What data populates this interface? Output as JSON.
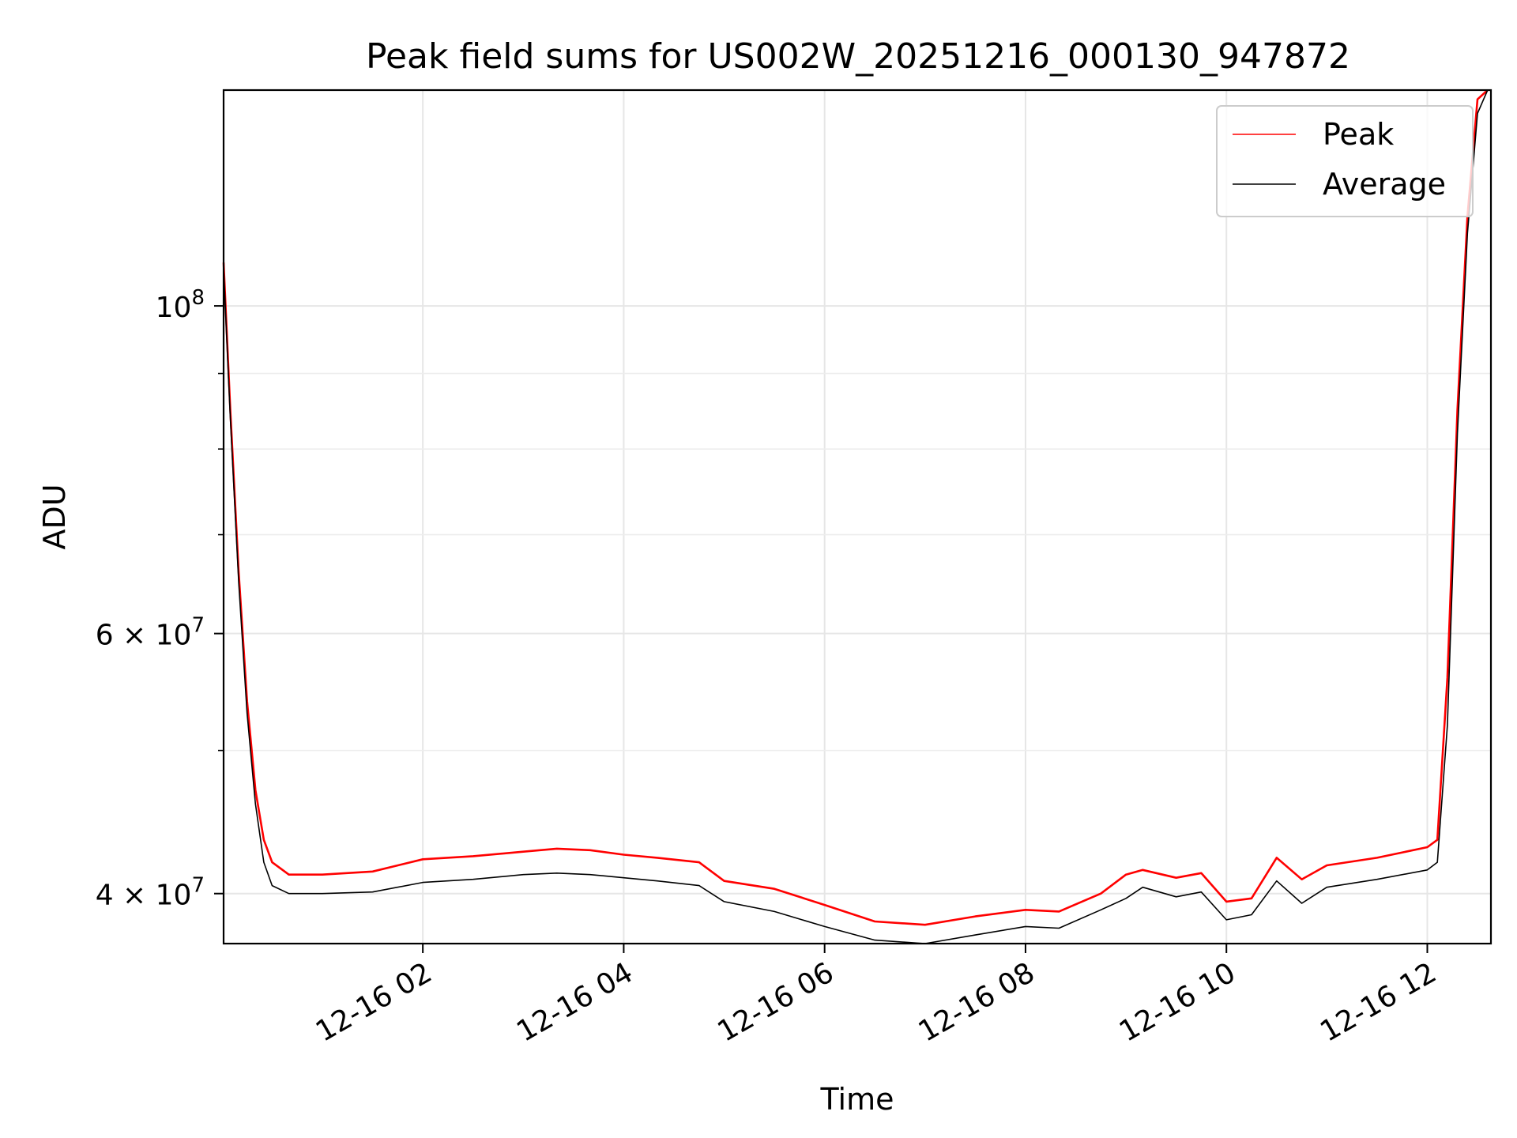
{
  "chart_data": {
    "type": "line",
    "title": "Peak field sums for US002W_20251216_000130_947872",
    "xlabel": "Time",
    "ylabel": "ADU",
    "y_scale": "log",
    "xlim": [
      "2025-12-16 00:01",
      "2025-12-16 12:38"
    ],
    "ylim": [
      37000000,
      140000000
    ],
    "grid": true,
    "legend_position": "top-right",
    "x_tick_labels": [
      "12-16 02",
      "12-16 04",
      "12-16 06",
      "12-16 08",
      "12-16 10",
      "12-16 12"
    ],
    "x_ticks": [
      "2025-12-16 02:00",
      "2025-12-16 04:00",
      "2025-12-16 06:00",
      "2025-12-16 08:00",
      "2025-12-16 10:00",
      "2025-12-16 12:00"
    ],
    "y_tick_labels": [
      {
        "value": 100000000,
        "base": "10",
        "exp": "8"
      },
      {
        "value": 60000000,
        "base": "6 × 10",
        "exp": "7"
      },
      {
        "value": 40000000,
        "base": "4 × 10",
        "exp": "7"
      }
    ],
    "y_minor_ticks": [
      50000000,
      70000000,
      80000000,
      90000000
    ],
    "series": [
      {
        "name": "Peak",
        "color": "#ff0000",
        "x": [
          "2025-12-16 00:01",
          "2025-12-16 00:05",
          "2025-12-16 00:10",
          "2025-12-16 00:15",
          "2025-12-16 00:20",
          "2025-12-16 00:25",
          "2025-12-16 00:30",
          "2025-12-16 00:40",
          "2025-12-16 01:00",
          "2025-12-16 01:30",
          "2025-12-16 02:00",
          "2025-12-16 02:30",
          "2025-12-16 03:00",
          "2025-12-16 03:20",
          "2025-12-16 03:40",
          "2025-12-16 04:00",
          "2025-12-16 04:20",
          "2025-12-16 04:45",
          "2025-12-16 05:00",
          "2025-12-16 05:30",
          "2025-12-16 06:00",
          "2025-12-16 06:30",
          "2025-12-16 07:00",
          "2025-12-16 07:30",
          "2025-12-16 08:00",
          "2025-12-16 08:20",
          "2025-12-16 08:45",
          "2025-12-16 09:00",
          "2025-12-16 09:10",
          "2025-12-16 09:30",
          "2025-12-16 09:45",
          "2025-12-16 10:00",
          "2025-12-16 10:15",
          "2025-12-16 10:30",
          "2025-12-16 10:45",
          "2025-12-16 11:00",
          "2025-12-16 11:30",
          "2025-12-16 12:00",
          "2025-12-16 12:06",
          "2025-12-16 12:12",
          "2025-12-16 12:18",
          "2025-12-16 12:24",
          "2025-12-16 12:30",
          "2025-12-16 12:36"
        ],
        "values": [
          107000000,
          85000000,
          66000000,
          54000000,
          47000000,
          43500000,
          42000000,
          41200000,
          41200000,
          41400000,
          42200000,
          42400000,
          42700000,
          42900000,
          42800000,
          42500000,
          42300000,
          42000000,
          40800000,
          40300000,
          39300000,
          38300000,
          38100000,
          38600000,
          39000000,
          38900000,
          40000000,
          41200000,
          41500000,
          41000000,
          41300000,
          39500000,
          39700000,
          42300000,
          40900000,
          41800000,
          42300000,
          43000000,
          43500000,
          56000000,
          85000000,
          115000000,
          138000000,
          140000000
        ]
      },
      {
        "name": "Average",
        "color": "#000000",
        "x": [
          "2025-12-16 00:01",
          "2025-12-16 00:05",
          "2025-12-16 00:10",
          "2025-12-16 00:15",
          "2025-12-16 00:20",
          "2025-12-16 00:25",
          "2025-12-16 00:30",
          "2025-12-16 00:40",
          "2025-12-16 01:00",
          "2025-12-16 01:30",
          "2025-12-16 02:00",
          "2025-12-16 02:30",
          "2025-12-16 03:00",
          "2025-12-16 03:20",
          "2025-12-16 03:40",
          "2025-12-16 04:00",
          "2025-12-16 04:20",
          "2025-12-16 04:45",
          "2025-12-16 05:00",
          "2025-12-16 05:30",
          "2025-12-16 06:00",
          "2025-12-16 06:30",
          "2025-12-16 07:00",
          "2025-12-16 07:30",
          "2025-12-16 08:00",
          "2025-12-16 08:20",
          "2025-12-16 08:45",
          "2025-12-16 09:00",
          "2025-12-16 09:10",
          "2025-12-16 09:30",
          "2025-12-16 09:45",
          "2025-12-16 10:00",
          "2025-12-16 10:15",
          "2025-12-16 10:30",
          "2025-12-16 10:45",
          "2025-12-16 11:00",
          "2025-12-16 11:30",
          "2025-12-16 12:00",
          "2025-12-16 12:06",
          "2025-12-16 12:12",
          "2025-12-16 12:18",
          "2025-12-16 12:24",
          "2025-12-16 12:30",
          "2025-12-16 12:36"
        ],
        "values": [
          106000000,
          84000000,
          65000000,
          53000000,
          46000000,
          42000000,
          40500000,
          40000000,
          40000000,
          40100000,
          40700000,
          40900000,
          41200000,
          41300000,
          41200000,
          41000000,
          40800000,
          40500000,
          39500000,
          38900000,
          38000000,
          37200000,
          37000000,
          37500000,
          38000000,
          37900000,
          39000000,
          39700000,
          40400000,
          39800000,
          40100000,
          38400000,
          38700000,
          40800000,
          39400000,
          40400000,
          40900000,
          41500000,
          42000000,
          52000000,
          82000000,
          112000000,
          135000000,
          140000000
        ]
      }
    ]
  }
}
